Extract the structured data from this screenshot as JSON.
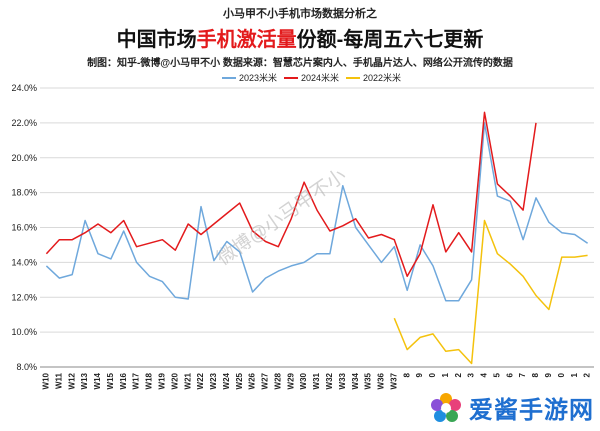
{
  "header": {
    "top_line": "小马甲不小手机市场数据分析之",
    "title_prefix": "中国市场",
    "title_highlight": "手机激活量",
    "title_suffix": "份额-每周五六七更新",
    "source_line": "制图：知乎-微博@小马甲不小   数据来源：智慧芯片案内人、手机晶片达人、网络公开流传的数据"
  },
  "watermark": {
    "center_text": "微博@小马甲不小",
    "logo_text": "爱酱手游网"
  },
  "colors": {
    "s2023": "#6fa8dc",
    "s2024": "#e31a1c",
    "s2022": "#f4c20d",
    "highlight": "#e31a1c",
    "grid": "#d9d9d9",
    "text": "#222222"
  },
  "chart_data": {
    "type": "line",
    "title": "中国市场手机激活量份额-每周五六七更新",
    "ylim": [
      8.0,
      24.0
    ],
    "y_ticks": [
      "8.0%",
      "10.0%",
      "12.0%",
      "14.0%",
      "16.0%",
      "18.0%",
      "20.0%",
      "22.0%",
      "24.0%"
    ],
    "x": [
      "W10",
      "W11",
      "W12",
      "W13",
      "W14",
      "W15",
      "W16",
      "W17",
      "W18",
      "W19",
      "W20",
      "W21",
      "W22",
      "W23",
      "W24",
      "W25",
      "W26",
      "W27",
      "W28",
      "W29",
      "W30",
      "W31",
      "W32",
      "W33",
      "W34",
      "W35",
      "W36",
      "W37",
      "W38",
      "W39",
      "W40",
      "W41",
      "W42",
      "W43",
      "W44",
      "W45",
      "W46",
      "W47",
      "W48",
      "W49",
      "W50",
      "W51",
      "W52"
    ],
    "x_tick_labels": [
      "W10",
      "W11",
      "W12",
      "W13",
      "W14",
      "W15",
      "W16",
      "W17",
      "W18",
      "W19",
      "W20",
      "W21",
      "W22",
      "W23",
      "W24",
      "W25",
      "W26",
      "W27",
      "W28",
      "W29",
      "W30",
      "W31",
      "W32",
      "W33",
      "W34",
      "W35",
      "W36",
      "W37",
      "8",
      "9",
      "0",
      "1",
      "2",
      "3",
      "4",
      "5",
      "6",
      "7",
      "8",
      "9",
      "0",
      "1",
      "2"
    ],
    "legend_position": "top",
    "series": [
      {
        "name": "2023米米",
        "color": "#6fa8dc",
        "values": [
          13.8,
          13.1,
          13.3,
          16.4,
          14.5,
          14.2,
          15.8,
          14.0,
          13.2,
          12.9,
          12.0,
          11.9,
          17.2,
          14.1,
          15.2,
          14.6,
          12.3,
          13.1,
          13.5,
          13.8,
          14.0,
          14.5,
          14.5,
          18.4,
          16.0,
          15.0,
          14.0,
          14.9,
          12.4,
          15.0,
          13.8,
          11.8,
          11.8,
          13.0,
          22.0,
          17.8,
          17.5,
          15.3,
          17.7,
          16.3,
          15.7,
          15.6,
          15.1
        ]
      },
      {
        "name": "2024米米",
        "color": "#e31a1c",
        "values": [
          14.5,
          15.3,
          15.3,
          15.7,
          16.2,
          15.7,
          16.4,
          14.9,
          15.1,
          15.3,
          14.7,
          16.2,
          15.6,
          16.2,
          16.8,
          17.4,
          15.8,
          15.2,
          14.9,
          16.5,
          18.6,
          17.0,
          15.8,
          16.1,
          16.5,
          15.4,
          15.6,
          15.3,
          13.2,
          14.5,
          17.3,
          14.6,
          15.7,
          14.6,
          22.6,
          18.5,
          17.8,
          17.0,
          22.0,
          null,
          null,
          null,
          null
        ]
      },
      {
        "name": "2022米米",
        "color": "#f4c20d",
        "values": [
          null,
          null,
          null,
          null,
          null,
          null,
          null,
          null,
          null,
          null,
          null,
          null,
          null,
          null,
          null,
          null,
          null,
          null,
          null,
          null,
          null,
          null,
          null,
          null,
          null,
          null,
          null,
          10.8,
          9.0,
          9.7,
          9.9,
          8.9,
          9.0,
          8.2,
          16.4,
          14.5,
          13.9,
          13.2,
          12.1,
          11.3,
          14.3,
          14.3,
          14.4
        ]
      }
    ]
  }
}
